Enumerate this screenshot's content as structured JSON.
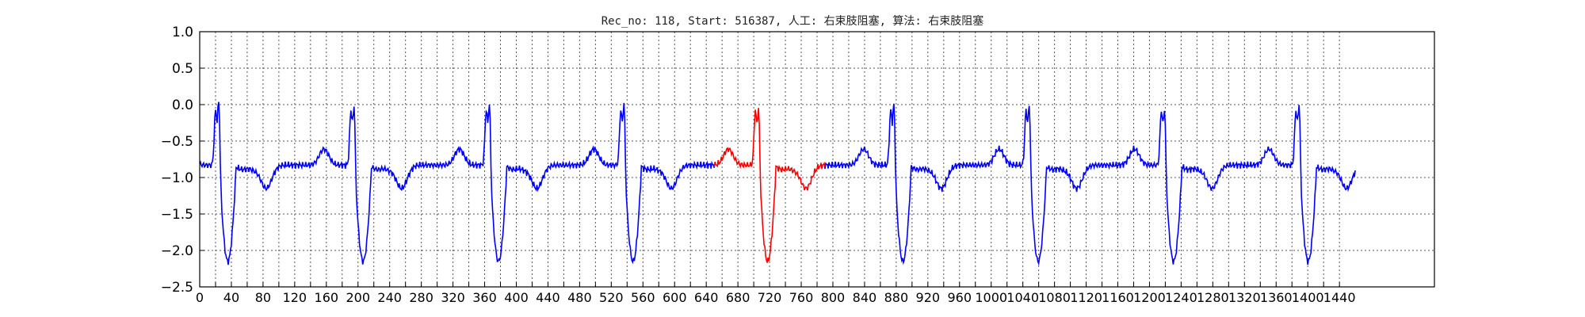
{
  "chart_data": {
    "type": "line",
    "title": "Rec_no: 118, Start: 516387, 人工: 右束肢阻塞, 算法: 右束肢阻塞",
    "xlabel": "",
    "ylabel": "",
    "xlim": [
      0,
      1560
    ],
    "ylim": [
      -2.5,
      1.0
    ],
    "grid": true,
    "y_ticks": [
      1.0,
      0.5,
      0.0,
      -0.5,
      -1.0,
      -1.5,
      -2.0,
      -2.5
    ],
    "y_tick_labels": [
      "1.0",
      "0.5",
      "0.0",
      "−0.5",
      "−1.0",
      "−1.5",
      "−2.0",
      "−2.5"
    ],
    "x_ticks": [
      0,
      20,
      40,
      60,
      80,
      100,
      120,
      140,
      160,
      180,
      200,
      220,
      240,
      260,
      280,
      300,
      320,
      340,
      360,
      380,
      400,
      420,
      440,
      460,
      480,
      500,
      520,
      540,
      560,
      580,
      600,
      620,
      640,
      660,
      680,
      700,
      720,
      740,
      760,
      780,
      800,
      820,
      840,
      860,
      880,
      900,
      920,
      940,
      960,
      980,
      1000,
      1020,
      1040,
      1060,
      1080,
      1100,
      1120,
      1140,
      1160,
      1180,
      1200,
      1220,
      1240,
      1260,
      1280,
      1300,
      1320,
      1340,
      1360,
      1380,
      1400,
      1420,
      1440
    ],
    "x_tick_labels": [
      "0",
      "40",
      "80",
      "120",
      "160",
      "200",
      "240",
      "280",
      "320",
      "360",
      "400",
      "440",
      "480",
      "520",
      "560",
      "600",
      "640",
      "680",
      "720",
      "760",
      "800",
      "840",
      "880",
      "920",
      "960",
      "1000",
      "1040",
      "1080",
      "1120",
      "1160",
      "1200",
      "1240",
      "1280",
      "1320",
      "1360",
      "1400",
      "1440"
    ],
    "x_tick_label_positions": [
      0,
      40,
      80,
      120,
      160,
      200,
      240,
      280,
      320,
      360,
      400,
      440,
      480,
      520,
      560,
      600,
      640,
      680,
      720,
      760,
      800,
      840,
      880,
      920,
      960,
      1000,
      1040,
      1080,
      1120,
      1160,
      1200,
      1240,
      1280,
      1320,
      1360,
      1400,
      1440
    ],
    "beats": [
      24,
      195,
      366,
      536,
      706,
      877,
      1048,
      1219,
      1389
    ],
    "beat_amplitudes": [
      0.62,
      0.55,
      0.57,
      0.58,
      0.5,
      0.57,
      0.55,
      0.5,
      0.57
    ],
    "baseline": -0.83,
    "s_trough": -2.15,
    "signal_end": 1460,
    "series": [
      {
        "color": "#0000ff",
        "x_range": [
          0,
          650
        ]
      },
      {
        "color": "#ff0000",
        "x_range": [
          650,
          790
        ]
      },
      {
        "color": "#0000ff",
        "x_range": [
          790,
          1460
        ]
      }
    ]
  }
}
